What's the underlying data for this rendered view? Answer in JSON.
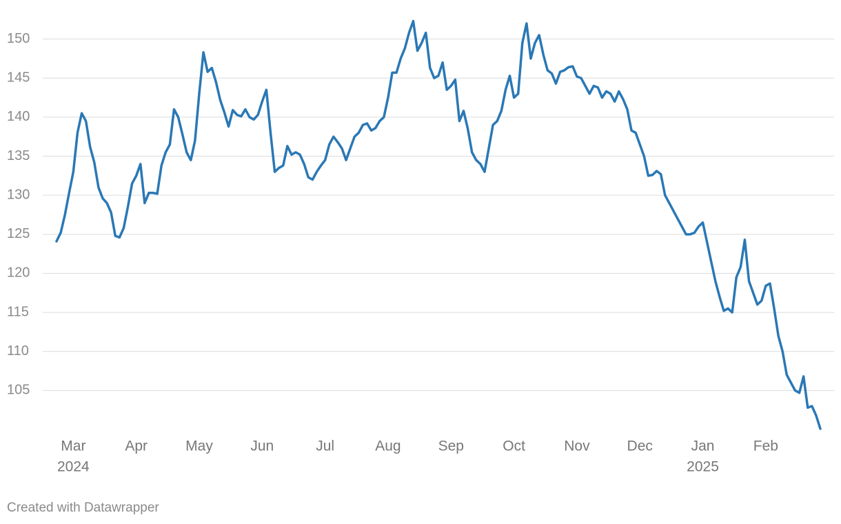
{
  "chart_data": {
    "type": "line",
    "color": "#2a78b5",
    "grid": true,
    "ylim": [
      100,
      155
    ],
    "yticks": [
      105,
      110,
      115,
      120,
      125,
      130,
      135,
      140,
      145,
      150
    ],
    "xticks": [
      {
        "value": "2024-03",
        "label": "Mar"
      },
      {
        "value": "2024-04",
        "label": "Apr"
      },
      {
        "value": "2024-05",
        "label": "May"
      },
      {
        "value": "2024-06",
        "label": "Jun"
      },
      {
        "value": "2024-07",
        "label": "Jul"
      },
      {
        "value": "2024-08",
        "label": "Aug"
      },
      {
        "value": "2024-09",
        "label": "Sep"
      },
      {
        "value": "2024-10",
        "label": "Oct"
      },
      {
        "value": "2024-11",
        "label": "Nov"
      },
      {
        "value": "2024-12",
        "label": "Dec"
      },
      {
        "value": "2025-01",
        "label": "Jan"
      },
      {
        "value": "2025-02",
        "label": "Feb"
      }
    ],
    "year_labels": [
      {
        "value": "2024-03",
        "label": "2024"
      },
      {
        "value": "2025-01",
        "label": "2025"
      }
    ],
    "credit": "Created with Datawrapper",
    "x": [
      "2024-02",
      "2024-02",
      "2024-02",
      "2024-02",
      "2024-03",
      "2024-03",
      "2024-03",
      "2024-03",
      "2024-03",
      "2024-03",
      "2024-03",
      "2024-03",
      "2024-03",
      "2024-03",
      "2024-03",
      "2024-03",
      "2024-03",
      "2024-03",
      "2024-03",
      "2024-04",
      "2024-04",
      "2024-04",
      "2024-04",
      "2024-04",
      "2024-04",
      "2024-04",
      "2024-04",
      "2024-04",
      "2024-04",
      "2024-04",
      "2024-04",
      "2024-04",
      "2024-04",
      "2024-04",
      "2024-05",
      "2024-05",
      "2024-05",
      "2024-05",
      "2024-05",
      "2024-05",
      "2024-05",
      "2024-05",
      "2024-05",
      "2024-05",
      "2024-05",
      "2024-05",
      "2024-05",
      "2024-05",
      "2024-05",
      "2024-06",
      "2024-06",
      "2024-06",
      "2024-06",
      "2024-06",
      "2024-06",
      "2024-06",
      "2024-06",
      "2024-06",
      "2024-06",
      "2024-06",
      "2024-06",
      "2024-06",
      "2024-06",
      "2024-06",
      "2024-07",
      "2024-07",
      "2024-07",
      "2024-07",
      "2024-07",
      "2024-07",
      "2024-07",
      "2024-07",
      "2024-07",
      "2024-07",
      "2024-07",
      "2024-07",
      "2024-07",
      "2024-07",
      "2024-07",
      "2024-08",
      "2024-08",
      "2024-08",
      "2024-08",
      "2024-08",
      "2024-08",
      "2024-08",
      "2024-08",
      "2024-08",
      "2024-08",
      "2024-08",
      "2024-08",
      "2024-08",
      "2024-08",
      "2024-08",
      "2024-09",
      "2024-09",
      "2024-09",
      "2024-09",
      "2024-09",
      "2024-09",
      "2024-09",
      "2024-09",
      "2024-09",
      "2024-09",
      "2024-09",
      "2024-09",
      "2024-09",
      "2024-09",
      "2024-09",
      "2024-10",
      "2024-10",
      "2024-10",
      "2024-10",
      "2024-10",
      "2024-10",
      "2024-10",
      "2024-10",
      "2024-10",
      "2024-10",
      "2024-10",
      "2024-10",
      "2024-10",
      "2024-10",
      "2024-10",
      "2024-11",
      "2024-11",
      "2024-11",
      "2024-11",
      "2024-11",
      "2024-11",
      "2024-11",
      "2024-11",
      "2024-11",
      "2024-11",
      "2024-11",
      "2024-11",
      "2024-11",
      "2024-11",
      "2024-11",
      "2024-12",
      "2024-12",
      "2024-12",
      "2024-12",
      "2024-12",
      "2024-12",
      "2024-12",
      "2024-12",
      "2024-12",
      "2024-12",
      "2024-12",
      "2024-12",
      "2024-12",
      "2024-12",
      "2024-12",
      "2025-01",
      "2025-01",
      "2025-01",
      "2025-01",
      "2025-01",
      "2025-01",
      "2025-01",
      "2025-01",
      "2025-01",
      "2025-01",
      "2025-01",
      "2025-01",
      "2025-01",
      "2025-01",
      "2025-01",
      "2025-02",
      "2025-02",
      "2025-02",
      "2025-02",
      "2025-02",
      "2025-02",
      "2025-02",
      "2025-02",
      "2025-02",
      "2025-02",
      "2025-02",
      "2025-02",
      "2025-02",
      "2025-02"
    ],
    "values": [
      124.1,
      125.2,
      127.5,
      130.3,
      133.0,
      138.0,
      140.5,
      139.5,
      136.2,
      134.2,
      131.0,
      129.6,
      129.0,
      127.8,
      124.8,
      124.6,
      125.8,
      128.5,
      131.5,
      132.5,
      134.0,
      129.0,
      130.3,
      130.3,
      130.2,
      133.8,
      135.5,
      136.5,
      141.0,
      140.0,
      137.8,
      135.5,
      134.5,
      137.0,
      143.0,
      148.3,
      145.8,
      146.3,
      144.5,
      142.2,
      140.6,
      138.8,
      140.9,
      140.3,
      140.1,
      141.0,
      140.0,
      139.7,
      140.3,
      142.0,
      143.5,
      138.0,
      133.0,
      133.5,
      133.8,
      136.3,
      135.2,
      135.5,
      135.2,
      134.0,
      132.3,
      132.0,
      133.0,
      133.8,
      134.5,
      136.5,
      137.5,
      136.8,
      136.0,
      134.5,
      136.0,
      137.5,
      138.0,
      139.0,
      139.2,
      138.3,
      138.6,
      139.5,
      140.0,
      142.5,
      145.7,
      145.7,
      147.5,
      148.8,
      150.8,
      152.3,
      148.5,
      149.5,
      150.8,
      146.3,
      145.0,
      145.3,
      147.0,
      143.5,
      144.0,
      144.8,
      139.5,
      140.8,
      138.5,
      135.5,
      134.5,
      134.0,
      133.0,
      136.0,
      139.0,
      139.5,
      140.8,
      143.5,
      145.3,
      142.5,
      143.0,
      149.5,
      152.0,
      147.5,
      149.5,
      150.5,
      148.0,
      146.0,
      145.6,
      144.3,
      145.8,
      146.0,
      146.4,
      146.5,
      145.2,
      145.0,
      144.0,
      143.0,
      144.0,
      143.8,
      142.5,
      143.3,
      143.0,
      142.0,
      143.3,
      142.3,
      141.0,
      138.3,
      138.0,
      136.5,
      135.0,
      132.5,
      132.6,
      133.1,
      132.7,
      130.0,
      129.0,
      128.0,
      127.0,
      126.0,
      125.0,
      125.0,
      125.2,
      126.0,
      126.5,
      124.0,
      121.5,
      119.0,
      117.0,
      115.2,
      115.5,
      115.0,
      119.5,
      120.8,
      124.3,
      119.0,
      117.5,
      116.0,
      116.5,
      118.4,
      118.7,
      115.5,
      112.0,
      110.0,
      107.0,
      106.0,
      105.0,
      104.7,
      106.8,
      102.8,
      103.0,
      101.8,
      100.1
    ]
  }
}
